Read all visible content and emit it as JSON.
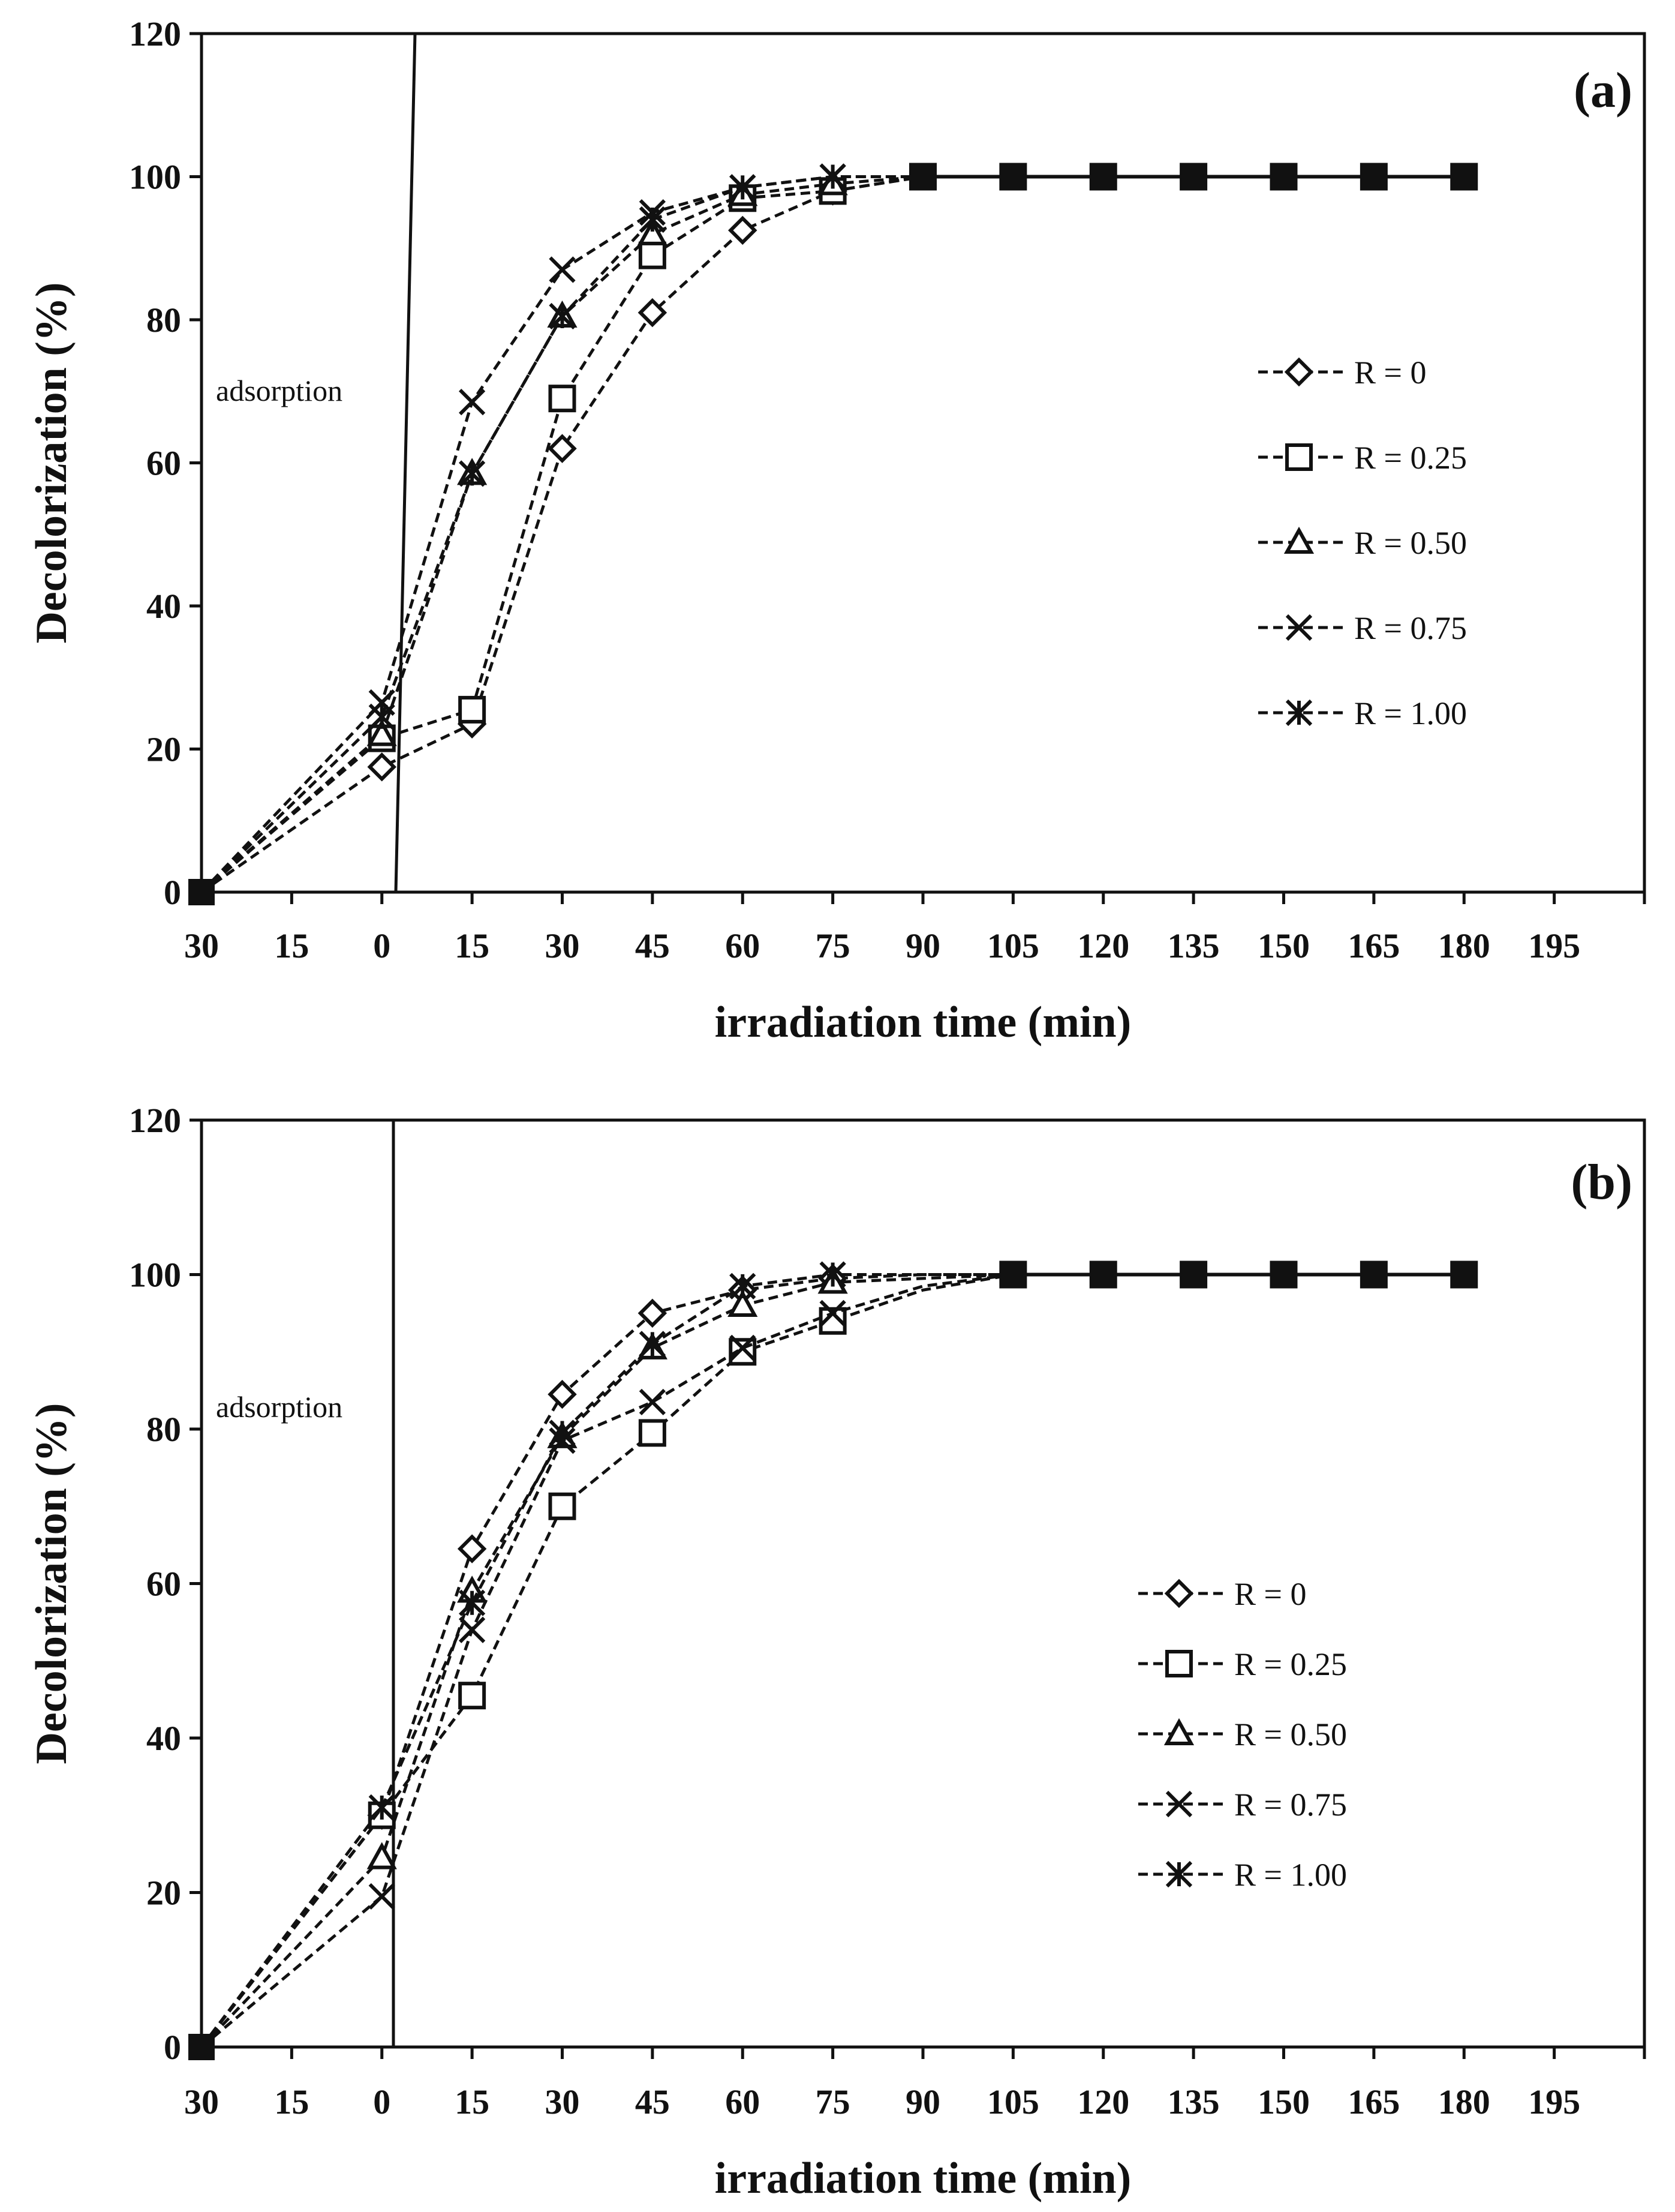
{
  "chart_data": [
    {
      "type": "line",
      "panel_label": "(a)",
      "annotation": "adsorption",
      "xlabel": "irradiation time (min)",
      "ylabel": "Decolorization (%)",
      "x_tick_labels": [
        "30",
        "15",
        "0",
        "15",
        "30",
        "45",
        "60",
        "75",
        "90",
        "105",
        "120",
        "135",
        "150",
        "165",
        "180",
        "195"
      ],
      "y_ticks": [
        0,
        20,
        40,
        60,
        80,
        100,
        120
      ],
      "ylim": [
        0,
        120
      ],
      "grid": false,
      "legend_position": "right-middle",
      "x_values": [
        -30,
        0,
        15,
        30,
        45,
        60,
        75,
        90,
        105,
        120,
        135,
        150,
        165,
        180
      ],
      "series": [
        {
          "name": "R = 0",
          "marker": "diamond",
          "values": [
            0,
            17.5,
            23.5,
            62,
            81,
            92.5,
            98,
            100,
            100,
            100,
            100,
            100,
            100,
            100
          ]
        },
        {
          "name": "R = 0.25",
          "marker": "square",
          "values": [
            0,
            21.5,
            25.5,
            69,
            89,
            97,
            98,
            100,
            100,
            100,
            100,
            100,
            100,
            100
          ]
        },
        {
          "name": "R = 0.50",
          "marker": "triangle",
          "values": [
            0,
            22,
            58.5,
            80.5,
            92,
            97.5,
            99,
            100,
            100,
            100,
            100,
            100,
            100,
            100
          ]
        },
        {
          "name": "R = 0.75",
          "marker": "x",
          "values": [
            0,
            26.5,
            68.5,
            87,
            95,
            98.5,
            100,
            100,
            100,
            100,
            100,
            100,
            100,
            100
          ]
        },
        {
          "name": "R = 1.00",
          "marker": "asterisk",
          "values": [
            0,
            24.5,
            58.5,
            80.5,
            94,
            98.5,
            100,
            100,
            100,
            100,
            100,
            100,
            100,
            100
          ]
        }
      ]
    },
    {
      "type": "line",
      "panel_label": "(b)",
      "annotation": "adsorption",
      "xlabel": "irradiation time (min)",
      "ylabel": "Decolorization (%)",
      "x_tick_labels": [
        "30",
        "15",
        "0",
        "15",
        "30",
        "45",
        "60",
        "75",
        "90",
        "105",
        "120",
        "135",
        "150",
        "165",
        "180",
        "195"
      ],
      "y_ticks": [
        0,
        20,
        40,
        60,
        80,
        100,
        120
      ],
      "ylim": [
        0,
        120
      ],
      "grid": false,
      "legend_position": "right-middle",
      "x_values": [
        -30,
        0,
        15,
        30,
        45,
        60,
        75,
        90,
        105,
        120,
        135,
        150,
        165,
        180
      ],
      "series": [
        {
          "name": "R = 0",
          "marker": "diamond",
          "values": [
            0,
            30,
            64.5,
            84.5,
            95,
            98,
            99.5,
            100,
            100,
            100,
            100,
            100,
            100,
            100
          ]
        },
        {
          "name": "R = 0.25",
          "marker": "square",
          "values": [
            0,
            30,
            45.5,
            70,
            79.5,
            90,
            94,
            98,
            100,
            100,
            100,
            100,
            100,
            100
          ]
        },
        {
          "name": "R = 0.50",
          "marker": "triangle",
          "values": [
            0,
            24.5,
            59,
            79,
            90.5,
            96,
            99,
            99.5,
            100,
            100,
            100,
            100,
            100,
            100
          ]
        },
        {
          "name": "R = 0.75",
          "marker": "x",
          "values": [
            0,
            19.5,
            54,
            78.5,
            83.5,
            90.5,
            95,
            98.5,
            100,
            100,
            100,
            100,
            100,
            100
          ]
        },
        {
          "name": "R = 1.00",
          "marker": "asterisk",
          "values": [
            0,
            31,
            57.5,
            79.5,
            91,
            98.5,
            100,
            100,
            100,
            100,
            100,
            100,
            100,
            100
          ]
        }
      ]
    }
  ]
}
